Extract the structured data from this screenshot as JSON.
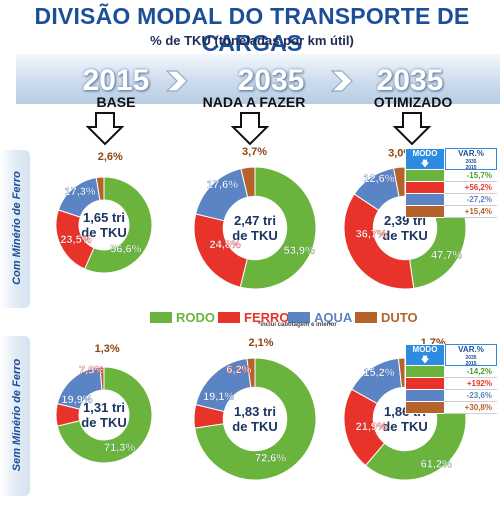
{
  "title": "DIVISÃO MODAL DO TRANSPORTE DE CARGAS",
  "subtitle": "% de TKU (toneladas por km útil)",
  "columns": [
    {
      "year": "2015",
      "scenario": "BASE"
    },
    {
      "year": "2035",
      "scenario": "NADA A FAZER"
    },
    {
      "year": "2035",
      "scenario": "OTIMIZADO"
    }
  ],
  "row_labels": [
    "Com Minério de Ferro",
    "Sem Minério de Ferro"
  ],
  "legend": {
    "items": [
      {
        "label": "RODO",
        "color": "#6ab43e"
      },
      {
        "label": "FERRO",
        "color": "#e8332a"
      },
      {
        "label": "AQUA",
        "color": "#5b84c4"
      },
      {
        "label": "DUTO",
        "color": "#b5632a"
      }
    ],
    "note": "*inclui cabotagem e interior"
  },
  "var_table_header": {
    "col1": "MODO",
    "col2": "VAR.%",
    "years_top": "2035",
    "years_bottom": "2015"
  },
  "chart_data": [
    {
      "type": "pie",
      "row": "Com Minério de Ferro",
      "column": "2015 BASE",
      "center_label": [
        "1,65 tri",
        "de TKU"
      ],
      "categories": [
        "RODO",
        "FERRO",
        "AQUA",
        "DUTO"
      ],
      "values": [
        56.6,
        23.5,
        17.3,
        2.6
      ],
      "value_labels": [
        "56,6%",
        "23,5%",
        "17,3%",
        "2,6%"
      ]
    },
    {
      "type": "pie",
      "row": "Com Minério de Ferro",
      "column": "2035 NADA A FAZER",
      "center_label": [
        "2,47 tri",
        "de TKU"
      ],
      "categories": [
        "RODO",
        "FERRO",
        "AQUA",
        "DUTO"
      ],
      "values": [
        53.9,
        24.8,
        17.6,
        3.7
      ],
      "value_labels": [
        "53,9%",
        "24,8%",
        "17,6%",
        "3,7%"
      ]
    },
    {
      "type": "pie",
      "row": "Com Minério de Ferro",
      "column": "2035 OTIMIZADO",
      "center_label": [
        "2,39 tri",
        "de TKU"
      ],
      "categories": [
        "RODO",
        "FERRO",
        "AQUA",
        "DUTO"
      ],
      "values": [
        47.7,
        36.7,
        12.6,
        3.0
      ],
      "value_labels": [
        "47,7%",
        "36,7%",
        "12,6%",
        "3,0%"
      ],
      "variation": [
        "-15,7%",
        "+56,2%",
        "-27,2%",
        "+15,4%"
      ]
    },
    {
      "type": "pie",
      "row": "Sem Minério de Ferro",
      "column": "2015 BASE",
      "center_label": [
        "1,31 tri",
        "de TKU"
      ],
      "categories": [
        "RODO",
        "FERRO",
        "AQUA",
        "DUTO"
      ],
      "values": [
        71.3,
        7.5,
        19.9,
        1.3
      ],
      "value_labels": [
        "71,3%",
        "7,5%",
        "19,9%",
        "1,3%"
      ]
    },
    {
      "type": "pie",
      "row": "Sem Minério de Ferro",
      "column": "2035 NADA A FAZER",
      "center_label": [
        "1,83 tri",
        "de TKU"
      ],
      "categories": [
        "RODO",
        "FERRO",
        "AQUA",
        "DUTO"
      ],
      "values": [
        72.6,
        6.2,
        19.1,
        2.1
      ],
      "value_labels": [
        "72,6%",
        "6,2%",
        "19,1%",
        "2,1%"
      ]
    },
    {
      "type": "pie",
      "row": "Sem Minério de Ferro",
      "column": "2035 OTIMIZADO",
      "center_label": [
        "1,86 tri",
        "de TKU"
      ],
      "categories": [
        "RODO",
        "FERRO",
        "AQUA",
        "DUTO"
      ],
      "values": [
        61.2,
        21.9,
        15.2,
        1.7
      ],
      "value_labels": [
        "61,2%",
        "21,9%",
        "15,2%",
        "1,7%"
      ],
      "variation": [
        "-14,2%",
        "+192%",
        "-23,6%",
        "+30,8%"
      ]
    }
  ]
}
